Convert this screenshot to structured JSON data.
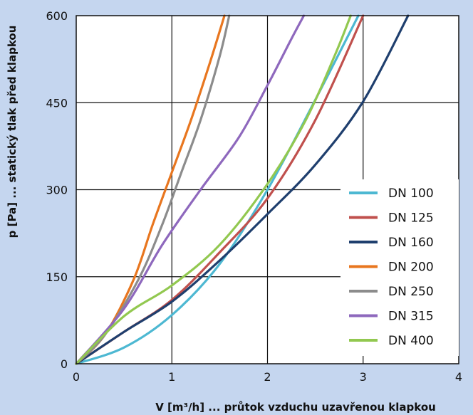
{
  "chart_data": {
    "type": "line",
    "xlabel": "V [m³/h] ... průtok vzduchu uzavřenou klapkou",
    "ylabel": "p [Pa] ... statický tlak před klapkou",
    "xlim": [
      0,
      4
    ],
    "ylim": [
      0,
      600
    ],
    "xticks": [
      0,
      1,
      2,
      3,
      4
    ],
    "yticks": [
      0,
      150,
      300,
      450,
      600
    ],
    "grid": true,
    "legend_position": "bottom-right",
    "series": [
      {
        "name": "DN 100",
        "color": "#4db8d2",
        "x": [
          0,
          0.5,
          1.0,
          1.5,
          2.0,
          2.5,
          2.95
        ],
        "y": [
          0,
          28,
          84,
          172,
          300,
          455,
          600
        ]
      },
      {
        "name": "DN 125",
        "color": "#c0504d",
        "x": [
          0,
          0.5,
          1.0,
          1.5,
          2.0,
          2.5,
          3.0
        ],
        "y": [
          0,
          55,
          110,
          192,
          285,
          420,
          600
        ]
      },
      {
        "name": "DN 160",
        "color": "#1f3f6e",
        "x": [
          0,
          0.5,
          1.0,
          1.5,
          2.0,
          2.5,
          3.0,
          3.47
        ],
        "y": [
          0,
          55,
          107,
          178,
          258,
          343,
          452,
          600
        ]
      },
      {
        "name": "DN 200",
        "color": "#e8761f",
        "x": [
          0,
          0.3,
          0.6,
          0.8,
          1.0,
          1.2,
          1.4,
          1.55
        ],
        "y": [
          0,
          50,
          145,
          240,
          330,
          420,
          520,
          600
        ]
      },
      {
        "name": "DN 250",
        "color": "#8c8c8c",
        "x": [
          0,
          0.3,
          0.65,
          0.9,
          1.1,
          1.3,
          1.5,
          1.6
        ],
        "y": [
          0,
          50,
          145,
          240,
          330,
          420,
          530,
          600
        ]
      },
      {
        "name": "DN 315",
        "color": "#8e68bd",
        "x": [
          0,
          0.5,
          0.9,
          1.3,
          1.7,
          2.0,
          2.25,
          2.38
        ],
        "y": [
          0,
          95,
          205,
          300,
          390,
          480,
          560,
          600
        ]
      },
      {
        "name": "DN 400",
        "color": "#92c850",
        "x": [
          0,
          0.5,
          1.0,
          1.5,
          2.0,
          2.4,
          2.7,
          2.87
        ],
        "y": [
          0,
          82,
          135,
          205,
          310,
          420,
          530,
          600
        ]
      }
    ]
  }
}
